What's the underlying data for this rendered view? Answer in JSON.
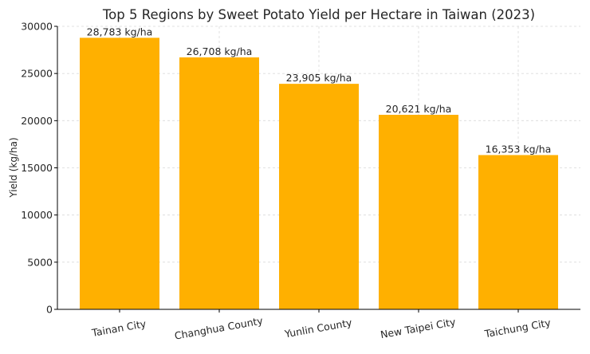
{
  "chart_data": {
    "type": "bar",
    "title": "Top 5 Regions by Sweet Potato Yield per Hectare in Taiwan (2023)",
    "xlabel": "",
    "ylabel": "Yield (kg/ha)",
    "ylim": [
      0,
      30000
    ],
    "yticks": [
      0,
      5000,
      10000,
      15000,
      20000,
      25000,
      30000
    ],
    "categories": [
      "Tainan City",
      "Changhua County",
      "Yunlin County",
      "New Taipei City",
      "Taichung City"
    ],
    "values": [
      28783,
      26708,
      23905,
      20621,
      16353
    ],
    "data_labels": [
      "28,783 kg/ha",
      "26,708 kg/ha",
      "23,905 kg/ha",
      "20,621 kg/ha",
      "16,353 kg/ha"
    ],
    "bar_color": "#FFB000",
    "grid": true,
    "x_tick_rotation_deg": -10
  }
}
